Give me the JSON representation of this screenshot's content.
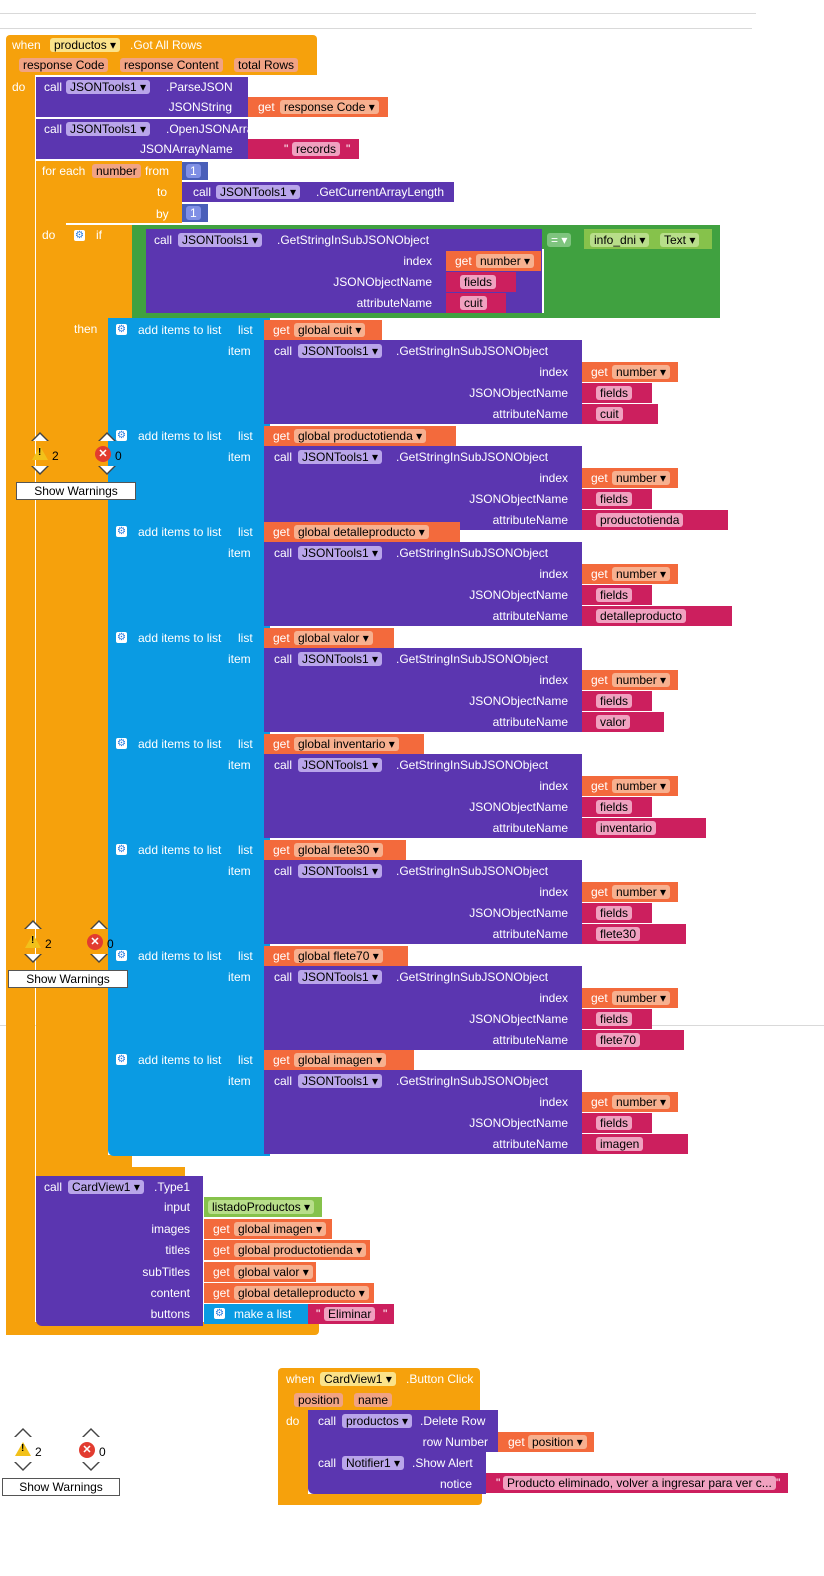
{
  "icons": {
    "gear": "gear-icon",
    "warning": "warning-icon",
    "error": "error-icon",
    "dropdown": "chevron-down-icon"
  },
  "colors": {
    "event": "#f6a10c",
    "component": "#5b36b0",
    "list": "#0a9be3",
    "logic": "#40a140",
    "text": "#cc1f5e",
    "variable": "#f36a3c"
  },
  "kw": {
    "when": "when",
    "do": "do",
    "call": "call",
    "get": "get",
    "for_each": "for each",
    "from": "from",
    "to": "to",
    "by": "by",
    "if": "if",
    "then": "then",
    "add_items": "add items to list",
    "list": "list",
    "item": "item",
    "index": "index",
    "jsonobj": "JSONObjectName",
    "attr": "attributeName",
    "q": "\"",
    "eq": "="
  },
  "event1": {
    "component": "productos",
    "event": ".Got All Rows",
    "params": [
      "response Code",
      "response Content",
      "total Rows"
    ],
    "call1": {
      "component": "JSONTools1",
      "method": ".ParseJSON",
      "arg_label": "JSONString",
      "arg_var": "response Code"
    },
    "call2": {
      "component": "JSONTools1",
      "method": ".OpenJSONArray",
      "arg_label": "JSONArrayName",
      "arg_text": "records"
    },
    "loop": {
      "var": "number",
      "from": "1",
      "to_component": "JSONTools1",
      "to_method": ".GetCurrentArrayLength",
      "by": "1"
    },
    "if_call": {
      "component": "JSONTools1",
      "method": ".GetStringInSubJSONObject",
      "index_var": "number",
      "obj": "fields",
      "attr": "cuit",
      "cmp_op": "=",
      "cmp_component": "info_dni",
      "cmp_prop": "Text"
    },
    "adds": [
      {
        "list": "global cuit",
        "attr": "cuit"
      },
      {
        "list": "global productotienda",
        "attr": "productotienda"
      },
      {
        "list": "global detalleproducto",
        "attr": "detalleproducto"
      },
      {
        "list": "global valor",
        "attr": "valor"
      },
      {
        "list": "global inventario",
        "attr": "inventario"
      },
      {
        "list": "global flete30",
        "attr": "flete30"
      },
      {
        "list": "global flete70",
        "attr": "flete70"
      },
      {
        "list": "global imagen",
        "attr": "imagen"
      }
    ],
    "add_common": {
      "component": "JSONTools1",
      "method": ".GetStringInSubJSONObject",
      "index_var": "number",
      "obj": "fields"
    },
    "card": {
      "component": "CardView1",
      "method": ".Type1",
      "rows": [
        {
          "label": "input",
          "value": "listadoProductos"
        },
        {
          "label": "images",
          "value": "global imagen"
        },
        {
          "label": "titles",
          "value": "global productotienda"
        },
        {
          "label": "subTitles",
          "value": "global valor"
        },
        {
          "label": "content",
          "value": "global detalleproducto"
        },
        {
          "label": "buttons",
          "value": "make a list",
          "text": "Eliminar"
        }
      ]
    }
  },
  "event2": {
    "component": "CardView1",
    "event": ".Button Click",
    "params": [
      "position",
      "name"
    ],
    "call1": {
      "component": "productos",
      "method": ".Delete Row",
      "arg_label": "row Number",
      "arg_var": "position"
    },
    "call2": {
      "component": "Notifier1",
      "method": ".Show Alert",
      "arg_label": "notice",
      "arg_text": "Producto eliminado, volver a ingresar para ver c..."
    }
  },
  "warnings": [
    {
      "warn_count": "2",
      "error_count": "0",
      "button": "Show Warnings"
    },
    {
      "warn_count": "2",
      "error_count": "0",
      "button": "Show Warnings"
    },
    {
      "warn_count": "2",
      "error_count": "0",
      "button": "Show Warnings"
    }
  ]
}
